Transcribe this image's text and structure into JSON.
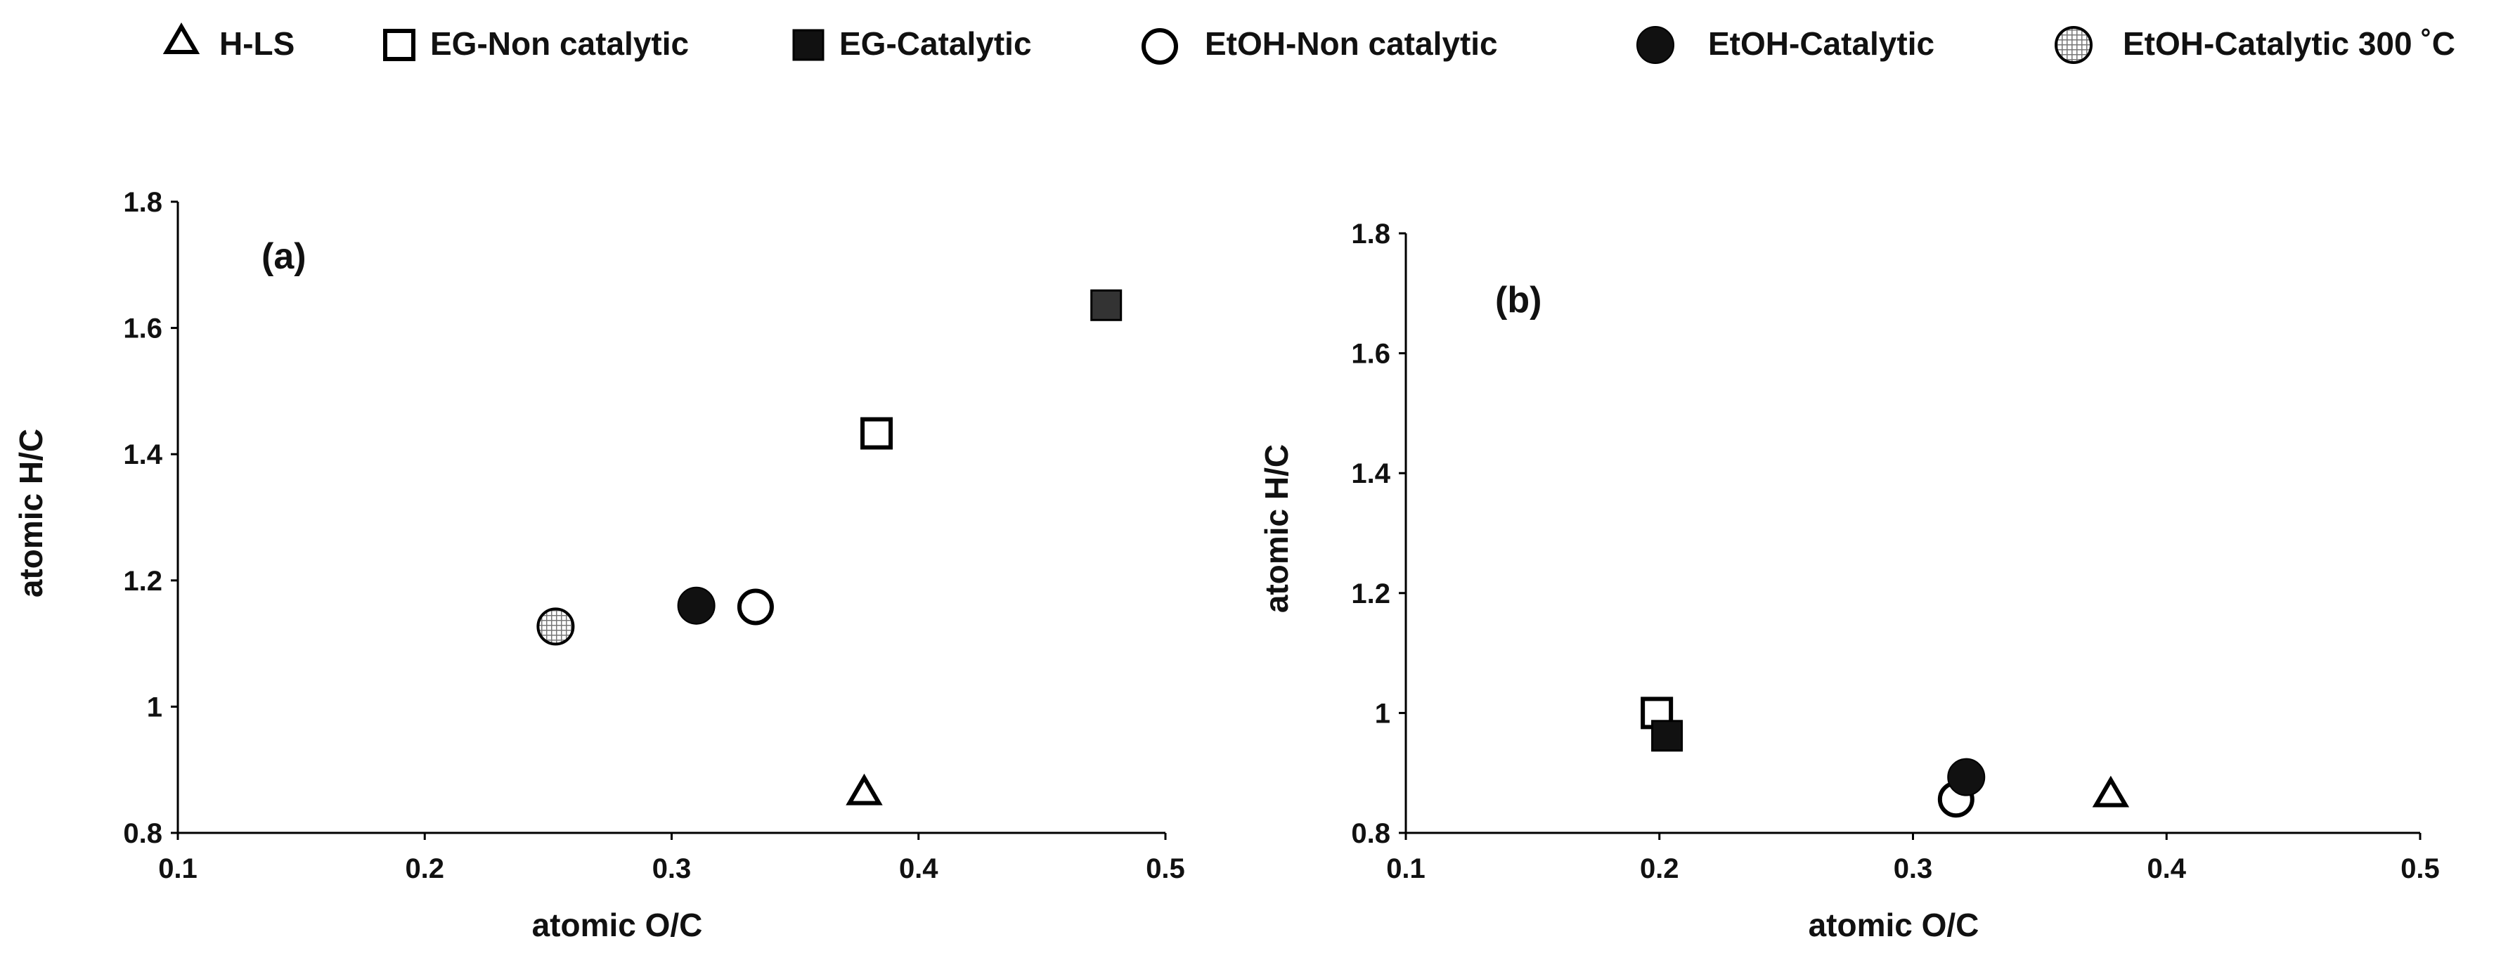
{
  "legend": [
    {
      "key": "hls",
      "label": "H-LS",
      "symbol": "triangle-open"
    },
    {
      "key": "egn",
      "label": "EG-Non catalytic",
      "symbol": "square-open"
    },
    {
      "key": "egc",
      "label": "EG-Catalytic",
      "symbol": "square-filled"
    },
    {
      "key": "etn",
      "label": "EtOH-Non catalytic",
      "symbol": "circle-open"
    },
    {
      "key": "etc",
      "label": "EtOH-Catalytic",
      "symbol": "circle-filled"
    },
    {
      "key": "et300",
      "label": "EtOH-Catalytic 300 ˚C",
      "symbol": "circle-hatched"
    }
  ],
  "colors": {
    "ink": "#000000",
    "filled": "#111111",
    "filled_square_a": "#333333",
    "hatch": "#888888",
    "background": "#ffffff"
  },
  "chart_data": [
    {
      "type": "scatter",
      "panel_label": "(a)",
      "xlabel": "atomic O/C",
      "ylabel": "atomic H/C",
      "xlim": [
        0.1,
        0.5
      ],
      "ylim": [
        0.8,
        1.8
      ],
      "xticks": [
        0.1,
        0.2,
        0.3,
        0.4,
        0.5
      ],
      "xtick_labels": [
        "0.1",
        "0.2",
        "0.3",
        "0.4",
        "0.5"
      ],
      "yticks": [
        0.8,
        1.0,
        1.2,
        1.4,
        1.6,
        1.8
      ],
      "ytick_labels": [
        "0.8",
        "1",
        "1.2",
        "1.4",
        "1.6",
        "1.8"
      ],
      "series": [
        {
          "key": "hls",
          "name": "H-LS",
          "x": 0.378,
          "y": 0.865
        },
        {
          "key": "egn",
          "name": "EG-Non catalytic",
          "x": 0.383,
          "y": 1.433
        },
        {
          "key": "egc",
          "name": "EG-Catalytic",
          "x": 0.476,
          "y": 1.636
        },
        {
          "key": "etn",
          "name": "EtOH-Non catalytic",
          "x": 0.334,
          "y": 1.158
        },
        {
          "key": "etc",
          "name": "EtOH-Catalytic",
          "x": 0.31,
          "y": 1.16
        },
        {
          "key": "et300",
          "name": "EtOH-Catalytic 300 ˚C",
          "x": 0.253,
          "y": 1.127
        }
      ]
    },
    {
      "type": "scatter",
      "panel_label": "(b)",
      "xlabel": "atomic O/C",
      "ylabel": "atomic H/C",
      "xlim": [
        0.1,
        0.5
      ],
      "ylim": [
        0.8,
        1.8
      ],
      "xticks": [
        0.1,
        0.2,
        0.3,
        0.4,
        0.5
      ],
      "xtick_labels": [
        "0.1",
        "0.2",
        "0.3",
        "0.4",
        "0.5"
      ],
      "yticks": [
        0.8,
        1.0,
        1.2,
        1.4,
        1.6,
        1.8
      ],
      "ytick_labels": [
        "0.8",
        "1",
        "1.2",
        "1.4",
        "1.6",
        "1.8"
      ],
      "series": [
        {
          "key": "hls",
          "name": "H-LS",
          "x": 0.378,
          "y": 0.865
        },
        {
          "key": "egn",
          "name": "EG-Non catalytic",
          "x": 0.199,
          "y": 1.0
        },
        {
          "key": "egc",
          "name": "EG-Catalytic",
          "x": 0.203,
          "y": 0.962
        },
        {
          "key": "etn",
          "name": "EtOH-Non catalytic",
          "x": 0.317,
          "y": 0.856
        },
        {
          "key": "etc",
          "name": "EtOH-Catalytic",
          "x": 0.321,
          "y": 0.893
        }
      ]
    }
  ]
}
